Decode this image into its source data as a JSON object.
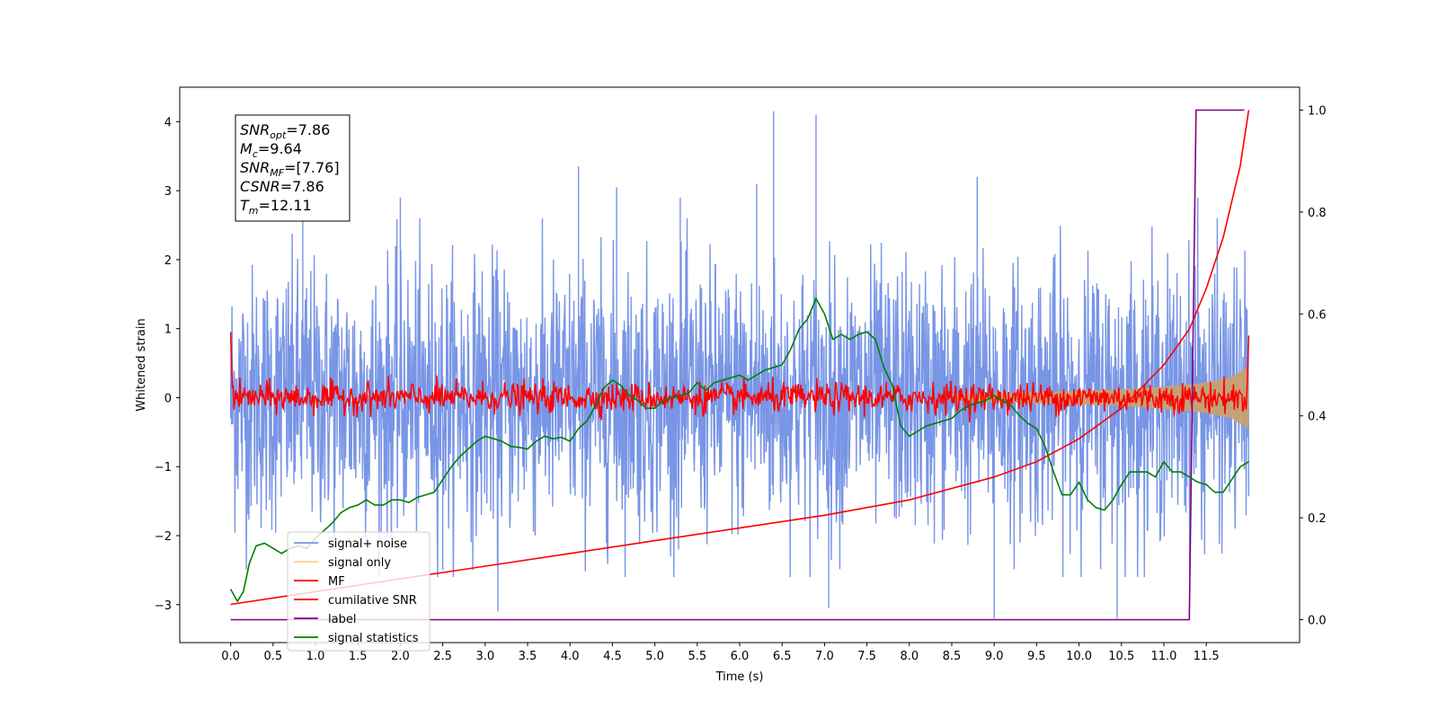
{
  "chart_data": {
    "type": "line",
    "title": "",
    "xlabel": "Time (s)",
    "ylabel": "Whitened strain",
    "xlim": [
      -0.6,
      12.6
    ],
    "ylim": [
      -3.55,
      4.5
    ],
    "y2lim": [
      -0.045,
      1.045
    ],
    "grid": false,
    "legend_position": "lower-left",
    "x_ticks": [
      "0.0",
      "0.5",
      "1.0",
      "1.5",
      "2.0",
      "2.5",
      "3.0",
      "3.5",
      "4.0",
      "4.5",
      "5.0",
      "5.5",
      "6.0",
      "6.5",
      "7.0",
      "7.5",
      "8.0",
      "8.5",
      "9.0",
      "9.5",
      "10.0",
      "10.5",
      "11.0",
      "11.5"
    ],
    "y_ticks": [
      {
        "value": -3,
        "label": "−3"
      },
      {
        "value": -2,
        "label": "−2"
      },
      {
        "value": -1,
        "label": "−1"
      },
      {
        "value": 0,
        "label": "0"
      },
      {
        "value": 1,
        "label": "1"
      },
      {
        "value": 2,
        "label": "2"
      },
      {
        "value": 3,
        "label": "3"
      },
      {
        "value": 4,
        "label": "4"
      }
    ],
    "y2_ticks": [
      "0.0",
      "0.2",
      "0.4",
      "0.6",
      "0.8",
      "1.0"
    ],
    "series": [
      {
        "name": "signal+ noise",
        "color": "#7895e6",
        "axis": "left",
        "x_range": [
          0.0,
          12.0
        ],
        "band_min": [
          -0.9,
          -2.6
        ],
        "band_max": [
          0.9,
          2.6
        ],
        "spikes": [
          {
            "x": 0.85,
            "y": 2.8
          },
          {
            "x": 2.0,
            "y": 2.9
          },
          {
            "x": 2.5,
            "y": -2.5
          },
          {
            "x": 3.15,
            "y": -3.1
          },
          {
            "x": 4.1,
            "y": 3.35
          },
          {
            "x": 4.55,
            "y": 3.05
          },
          {
            "x": 5.3,
            "y": 2.9
          },
          {
            "x": 6.2,
            "y": 3.1
          },
          {
            "x": 6.4,
            "y": 4.15
          },
          {
            "x": 6.9,
            "y": 4.1
          },
          {
            "x": 7.05,
            "y": -3.05
          },
          {
            "x": 8.8,
            "y": 3.2
          },
          {
            "x": 9.0,
            "y": -3.2
          },
          {
            "x": 10.45,
            "y": -3.2
          },
          {
            "x": 11.4,
            "y": 2.9
          }
        ]
      },
      {
        "name": "signal only",
        "color": "#c8a070",
        "axis": "left",
        "envelope_x": [
          8.5,
          9.5,
          10.5,
          11.0,
          11.5,
          11.8,
          12.0
        ],
        "envelope_y": [
          0.05,
          0.08,
          0.12,
          0.16,
          0.22,
          0.3,
          0.45
        ]
      },
      {
        "name": "MF",
        "color": "#ff0000",
        "axis": "left",
        "x_range": [
          0.0,
          12.0
        ],
        "band": 0.18
      },
      {
        "name": "cumilative SNR",
        "color": "#ff0000",
        "axis": "right",
        "x": [
          0.0,
          1.0,
          2.0,
          3.0,
          4.0,
          5.0,
          6.0,
          7.0,
          8.0,
          9.0,
          9.5,
          10.0,
          10.5,
          11.0,
          11.3,
          11.5,
          11.7,
          11.9,
          12.0
        ],
        "y": [
          0.03,
          0.055,
          0.08,
          0.105,
          0.13,
          0.155,
          0.18,
          0.205,
          0.235,
          0.28,
          0.31,
          0.355,
          0.415,
          0.5,
          0.57,
          0.65,
          0.75,
          0.89,
          1.0
        ]
      },
      {
        "name": "label",
        "color": "#800080",
        "axis": "right",
        "x": [
          0.0,
          11.3,
          11.38,
          11.95
        ],
        "y": [
          0.0,
          0.0,
          1.0,
          1.0
        ]
      },
      {
        "name": "signal statistics",
        "color": "#008000",
        "axis": "right",
        "x": [
          0.0,
          0.08,
          0.15,
          0.22,
          0.3,
          0.4,
          0.5,
          0.6,
          0.7,
          0.8,
          0.9,
          1.0,
          1.1,
          1.2,
          1.3,
          1.4,
          1.5,
          1.6,
          1.7,
          1.8,
          1.9,
          2.0,
          2.1,
          2.2,
          2.3,
          2.4,
          2.5,
          2.6,
          2.7,
          2.8,
          2.9,
          3.0,
          3.1,
          3.2,
          3.3,
          3.4,
          3.5,
          3.6,
          3.7,
          3.8,
          3.9,
          4.0,
          4.1,
          4.2,
          4.3,
          4.4,
          4.5,
          4.6,
          4.7,
          4.8,
          4.9,
          5.0,
          5.1,
          5.2,
          5.3,
          5.4,
          5.5,
          5.6,
          5.7,
          5.8,
          5.9,
          6.0,
          6.1,
          6.2,
          6.3,
          6.4,
          6.5,
          6.6,
          6.7,
          6.8,
          6.9,
          7.0,
          7.1,
          7.2,
          7.3,
          7.4,
          7.5,
          7.6,
          7.7,
          7.8,
          7.9,
          8.0,
          8.1,
          8.2,
          8.3,
          8.4,
          8.5,
          8.6,
          8.7,
          8.8,
          8.9,
          9.0,
          9.1,
          9.2,
          9.3,
          9.4,
          9.5,
          9.6,
          9.7,
          9.8,
          9.9,
          10.0,
          10.1,
          10.2,
          10.3,
          10.4,
          10.5,
          10.6,
          10.7,
          10.8,
          10.9,
          11.0,
          11.1,
          11.2,
          11.3,
          11.4,
          11.5,
          11.6,
          11.7,
          11.8,
          11.9,
          12.0
        ],
        "y": [
          0.06,
          0.036,
          0.055,
          0.11,
          0.145,
          0.15,
          0.14,
          0.13,
          0.14,
          0.145,
          0.14,
          0.16,
          0.175,
          0.19,
          0.21,
          0.22,
          0.225,
          0.235,
          0.225,
          0.225,
          0.235,
          0.235,
          0.23,
          0.24,
          0.245,
          0.25,
          0.275,
          0.3,
          0.32,
          0.335,
          0.35,
          0.36,
          0.355,
          0.35,
          0.34,
          0.338,
          0.335,
          0.35,
          0.36,
          0.355,
          0.358,
          0.35,
          0.375,
          0.39,
          0.42,
          0.455,
          0.47,
          0.46,
          0.44,
          0.43,
          0.415,
          0.415,
          0.43,
          0.435,
          0.44,
          0.445,
          0.465,
          0.45,
          0.465,
          0.47,
          0.475,
          0.48,
          0.47,
          0.48,
          0.49,
          0.495,
          0.5,
          0.53,
          0.57,
          0.59,
          0.63,
          0.6,
          0.55,
          0.56,
          0.55,
          0.56,
          0.565,
          0.55,
          0.495,
          0.46,
          0.38,
          0.36,
          0.37,
          0.38,
          0.385,
          0.39,
          0.395,
          0.41,
          0.42,
          0.425,
          0.43,
          0.44,
          0.43,
          0.42,
          0.4,
          0.385,
          0.375,
          0.34,
          0.29,
          0.245,
          0.245,
          0.27,
          0.235,
          0.22,
          0.215,
          0.235,
          0.265,
          0.29,
          0.29,
          0.29,
          0.28,
          0.31,
          0.29,
          0.29,
          0.28,
          0.27,
          0.265,
          0.25,
          0.25,
          0.275,
          0.3,
          0.31
        ]
      }
    ],
    "annotation": {
      "lines": [
        {
          "main": "SNR",
          "sub": "opt",
          "value": "=7.86"
        },
        {
          "main": "M",
          "sub": "c",
          "value": "=9.64"
        },
        {
          "main": "SNR",
          "sub": "MF",
          "value": "=[7.76]"
        },
        {
          "main": "CSNR",
          "sub": "",
          "value": "=7.86"
        },
        {
          "main": "T",
          "sub": "m",
          "value": "=12.11"
        }
      ]
    }
  }
}
